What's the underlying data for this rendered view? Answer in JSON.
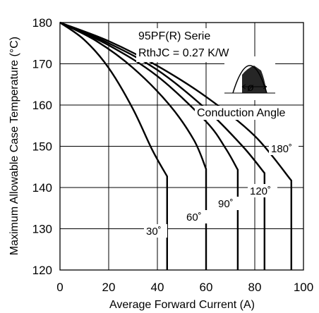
{
  "chart_data": {
    "type": "line",
    "xlabel": "Average Forward Current (A)",
    "ylabel": "Maximum Allowable Case Temperature (°C)",
    "xlim": [
      0,
      100
    ],
    "ylim": [
      120,
      180
    ],
    "xticks": [
      0,
      20,
      40,
      60,
      80,
      100
    ],
    "yticks": [
      120,
      130,
      140,
      150,
      160,
      170,
      180
    ],
    "grid": true,
    "annotations": {
      "line1": "95PF(R) Serie",
      "line2": "RthJC = 0.27 K/W",
      "inset_symbol": "ø",
      "inset_caption": "Conduction Angle"
    },
    "series": [
      {
        "name": "30˚",
        "x": [
          0,
          10,
          20,
          30,
          38,
          44,
          44
        ],
        "y": [
          180,
          175.8,
          169.0,
          159.0,
          149.0,
          142.7,
          120
        ]
      },
      {
        "name": "60˚",
        "x": [
          0,
          15,
          30,
          45,
          55,
          60,
          60
        ],
        "y": [
          180,
          175.5,
          169.0,
          160.0,
          151.5,
          144.5,
          120
        ]
      },
      {
        "name": "90˚",
        "x": [
          0,
          20,
          40,
          60,
          68,
          73,
          73
        ],
        "y": [
          180,
          174.5,
          167.0,
          156.0,
          149.5,
          144.3,
          120
        ]
      },
      {
        "name": "120˚",
        "x": [
          0,
          20,
          40,
          60,
          75,
          84,
          84
        ],
        "y": [
          180,
          175.0,
          168.5,
          159.0,
          150.0,
          143.5,
          120
        ]
      },
      {
        "name": "180˚",
        "x": [
          0,
          20,
          40,
          60,
          80,
          95,
          95
        ],
        "y": [
          180,
          175.5,
          169.5,
          162.0,
          152.5,
          141.7,
          120
        ]
      }
    ]
  }
}
